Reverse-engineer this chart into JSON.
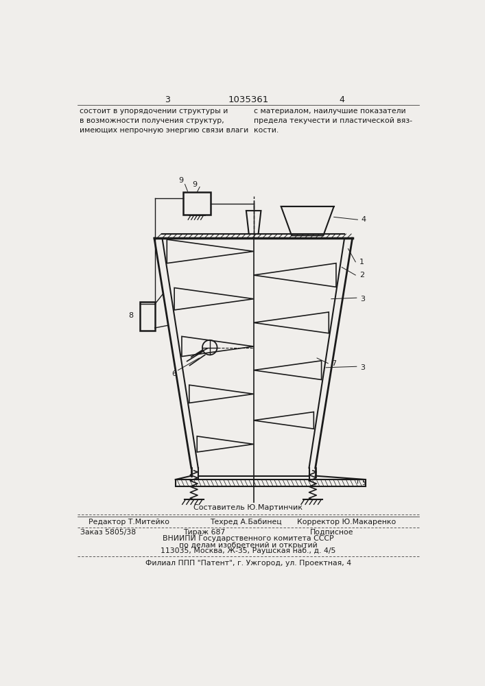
{
  "bg_color": "#f0eeeb",
  "line_color": "#1a1a1a",
  "top_text_left": "состоит в упорядочении структуры и\nв возможности получения структур,\nимеющих непрочную энергию связи влаги",
  "top_text_right": "с материалом, наилучшие показатели\nпредела текучести и пластической вяз-\nкости.",
  "page_num_left": "3",
  "page_num_right": "4",
  "patent_num": "1035361",
  "footer_line1": "Составитель Ю.Мартинчик",
  "footer_line2_left": "Редактор Т.Митейко",
  "footer_line2_mid": "Техред А.Бабинец",
  "footer_line2_right": "Корректор Ю.Макаренко",
  "footer_line3_left": "Заказ 5805/38",
  "footer_line3_mid": "Тираж 687",
  "footer_line3_right": "Подписное",
  "footer_line4": "ВНИИПИ Государственного комитета СССР",
  "footer_line5": "по делам изобретений и открытий",
  "footer_line6": "113035, Москва, Ж-35, Раушская наб., д. 4/5",
  "footer_line7": "Филиал ППП \"Патент\", г. Ужгород, ул. Проектная, 4"
}
